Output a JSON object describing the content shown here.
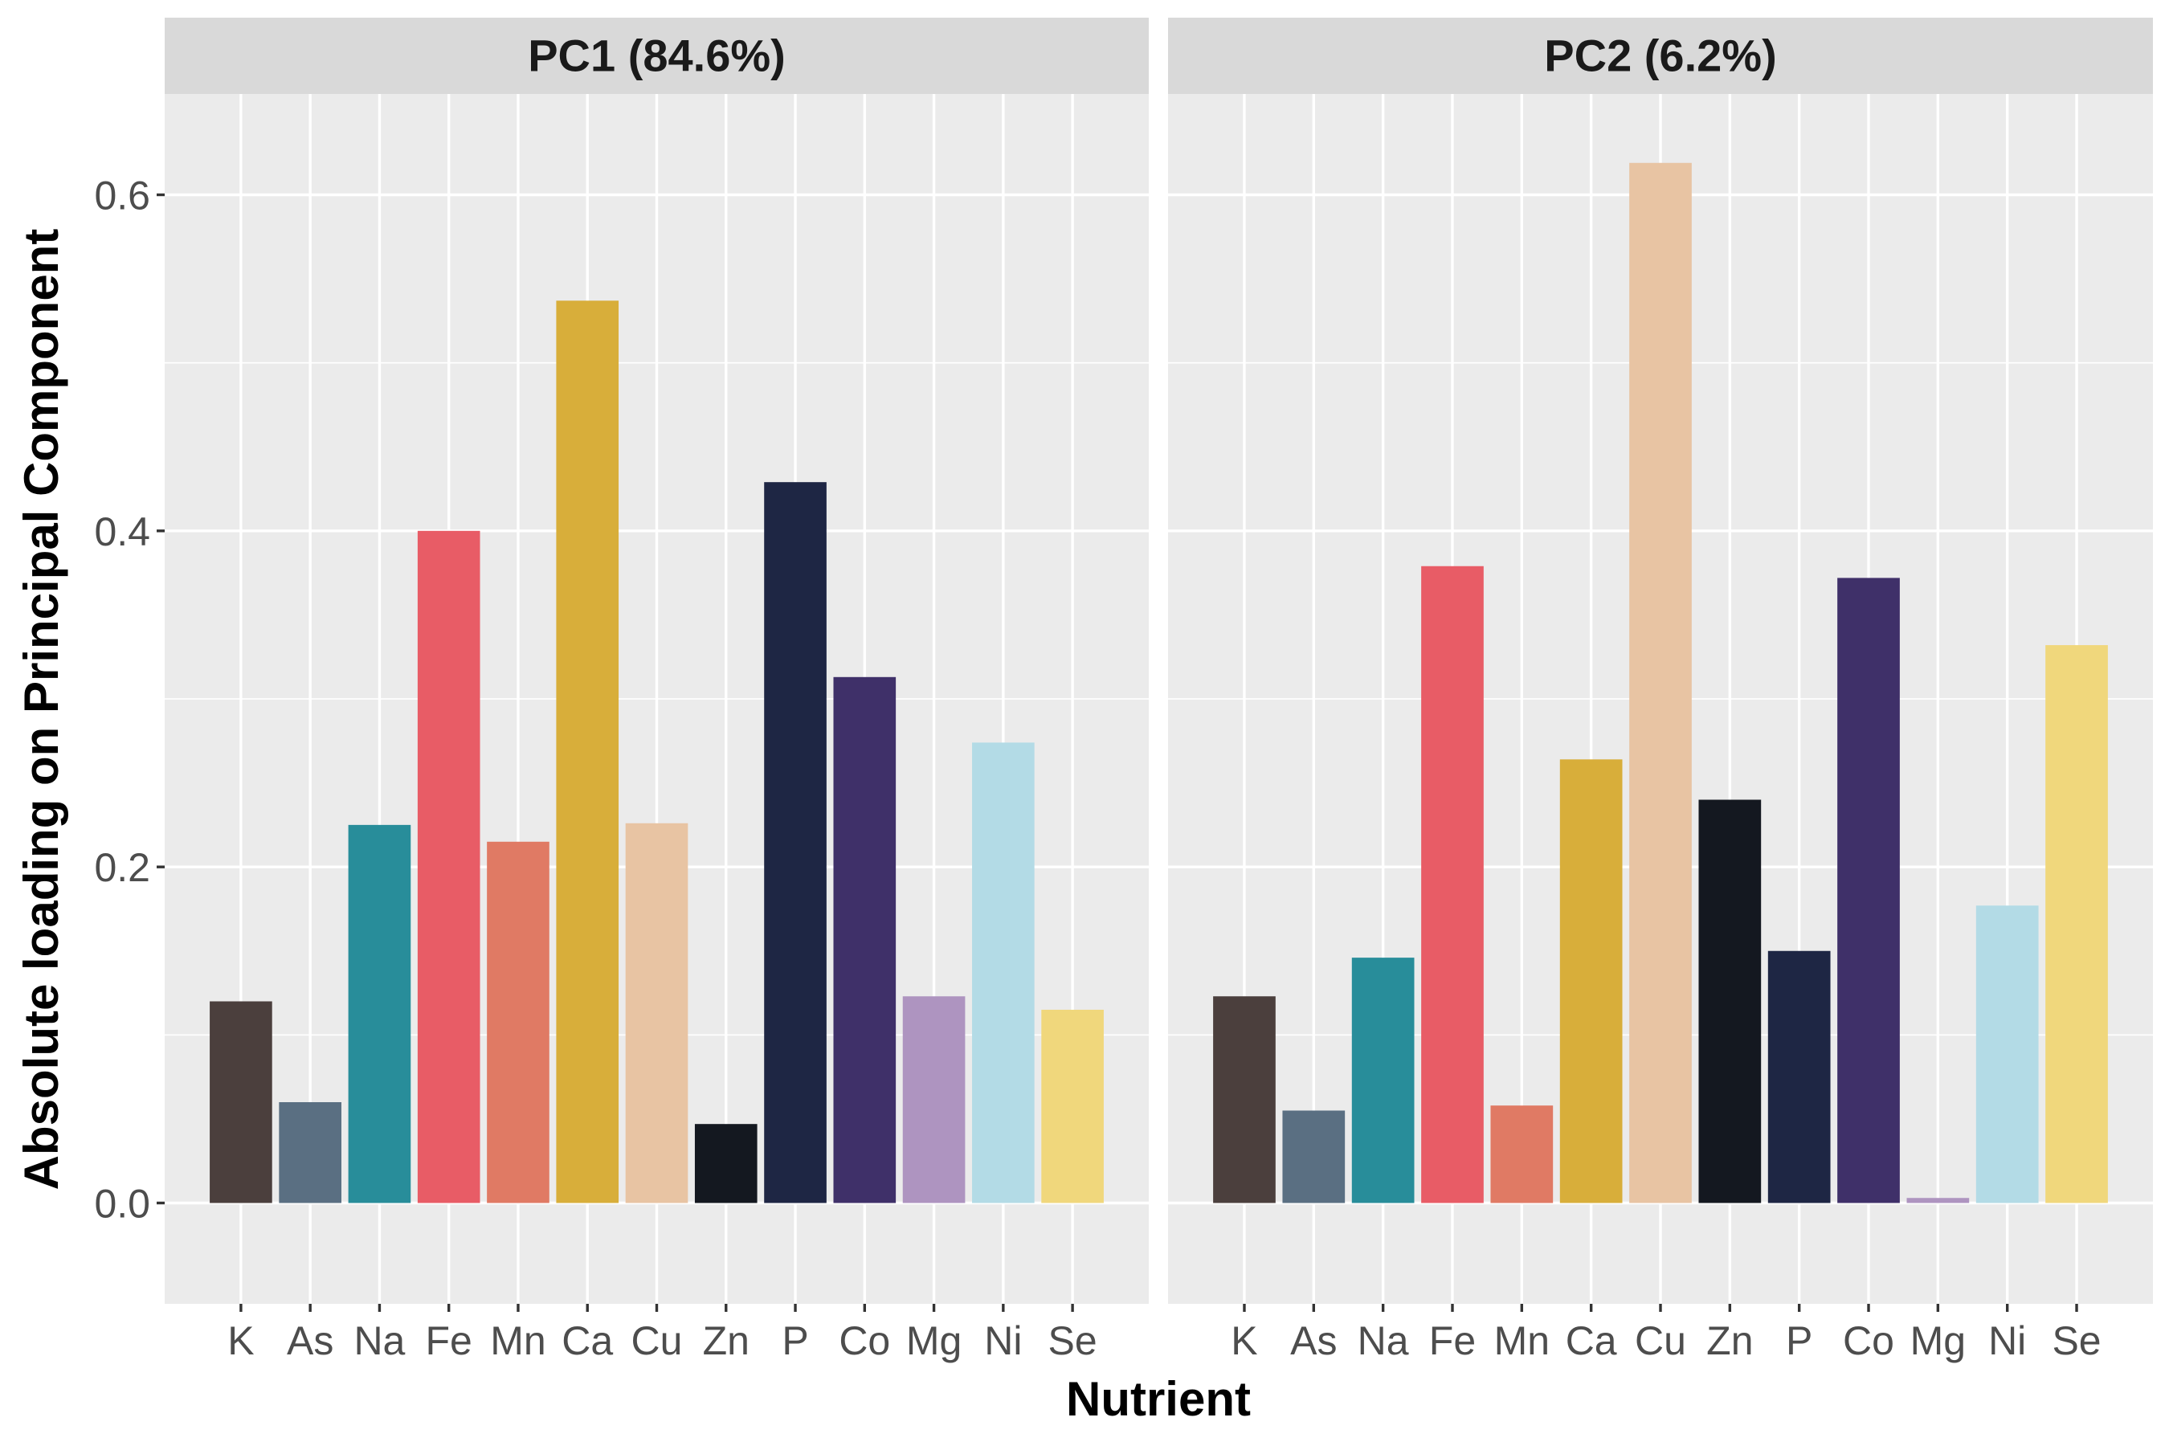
{
  "chart_data": {
    "type": "bar",
    "xlabel": "Nutrient",
    "ylabel": "Absolute loading on Principal Component",
    "ylim": [
      -0.06,
      0.66
    ],
    "yticks": [
      0.0,
      0.2,
      0.4,
      0.6
    ],
    "ytick_labels": [
      "0.0",
      "0.2",
      "0.4",
      "0.6"
    ],
    "grid": true,
    "legend": "none",
    "categories": [
      "K",
      "As",
      "Na",
      "Fe",
      "Mn",
      "Ca",
      "Cu",
      "Zn",
      "P",
      "Co",
      "Mg",
      "Ni",
      "Se"
    ],
    "colors": [
      "#4b3f3d",
      "#5a6f82",
      "#288d9a",
      "#e85c66",
      "#e07a64",
      "#d8ae3a",
      "#e8c4a3",
      "#141820",
      "#1e2644",
      "#3f3069",
      "#ae94c0",
      "#b3dbe6",
      "#f0d77c"
    ],
    "panels": [
      {
        "title": "PC1 (84.6%)",
        "values": [
          0.12,
          0.06,
          0.225,
          0.4,
          0.215,
          0.537,
          0.226,
          0.047,
          0.429,
          0.313,
          0.123,
          0.274,
          0.115
        ]
      },
      {
        "title": "PC2 (6.2%)",
        "values": [
          0.123,
          0.055,
          0.146,
          0.379,
          0.058,
          0.264,
          0.619,
          0.24,
          0.15,
          0.372,
          0.003,
          0.177,
          0.332
        ]
      }
    ]
  }
}
